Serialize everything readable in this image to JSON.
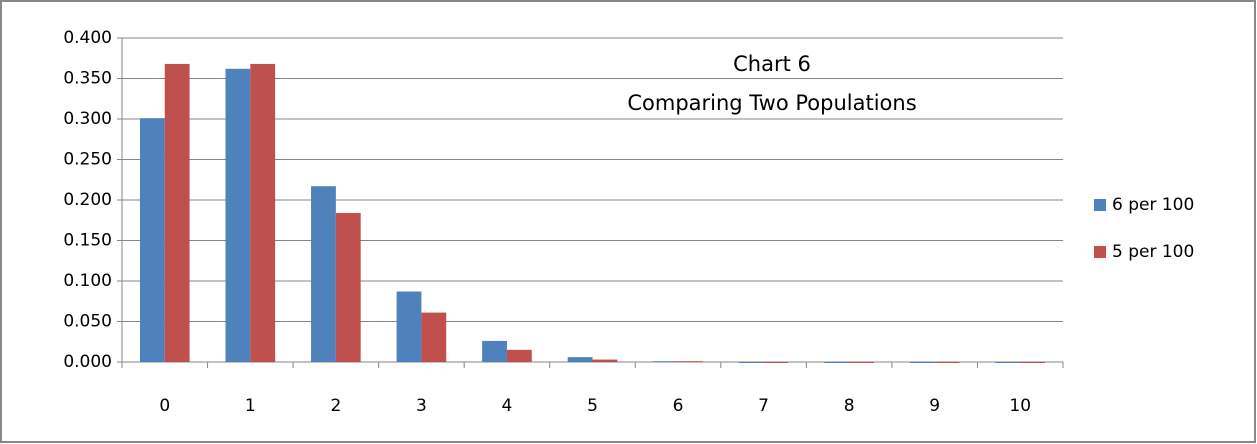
{
  "chart_data": {
    "type": "bar",
    "title": "Chart 6",
    "subtitle": "Comparing Two Populations",
    "categories": [
      "0",
      "1",
      "2",
      "3",
      "4",
      "5",
      "6",
      "7",
      "8",
      "9",
      "10"
    ],
    "series": [
      {
        "name": "6 per 100",
        "color": "#4f81bd",
        "values": [
          0.301,
          0.362,
          0.217,
          0.087,
          0.026,
          0.006,
          0.001,
          0.0,
          0.0,
          0.0,
          0.0
        ]
      },
      {
        "name": "5 per 100",
        "color": "#c0504d",
        "values": [
          0.368,
          0.368,
          0.184,
          0.061,
          0.015,
          0.003,
          0.001,
          0.0,
          0.0,
          0.0,
          0.0
        ]
      }
    ],
    "ylim": [
      0,
      0.4
    ],
    "yticks": [
      {
        "value": 0,
        "label": "0.000"
      },
      {
        "value": 0.05,
        "label": "0.050"
      },
      {
        "value": 0.1,
        "label": "0.100"
      },
      {
        "value": 0.15,
        "label": "0.150"
      },
      {
        "value": 0.2,
        "label": "0.200"
      },
      {
        "value": 0.25,
        "label": "0.250"
      },
      {
        "value": 0.3,
        "label": "0.300"
      },
      {
        "value": 0.35,
        "label": "0.350"
      },
      {
        "value": 0.4,
        "label": "0.400"
      }
    ],
    "grid": true,
    "legend": "right"
  }
}
